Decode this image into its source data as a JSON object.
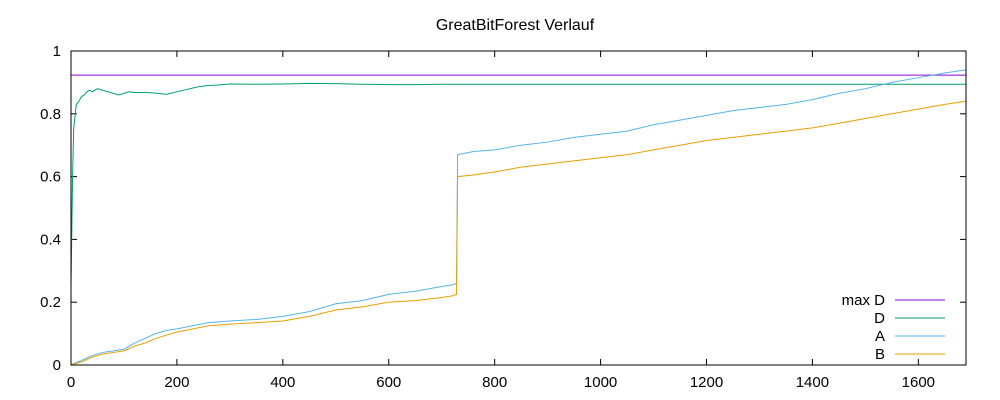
{
  "chart_data": {
    "type": "line",
    "title": "GreatBitForest Verlauf",
    "xlabel": "",
    "ylabel": "",
    "xlim": [
      0,
      1690
    ],
    "ylim": [
      0,
      1
    ],
    "x_ticks": [
      0,
      200,
      400,
      600,
      800,
      1000,
      1200,
      1400,
      1600
    ],
    "y_ticks": [
      0,
      0.2,
      0.4,
      0.6,
      0.8,
      1
    ],
    "x_tick_labels": [
      "0",
      "200",
      "400",
      "600",
      "800",
      "1000",
      "1200",
      "1400",
      "1600"
    ],
    "y_tick_labels": [
      "0",
      "0.2",
      "0.4",
      "0.6",
      "0.8",
      "1"
    ],
    "grid": false,
    "legend_position": "bottom-right",
    "series": [
      {
        "name": "max D",
        "color": "#9400d3",
        "x": [
          0,
          1690
        ],
        "y": [
          0.923,
          0.923
        ]
      },
      {
        "name": "D",
        "color": "#009e73",
        "x": [
          0,
          3,
          5,
          8,
          10,
          15,
          20,
          25,
          30,
          35,
          40,
          50,
          60,
          70,
          80,
          90,
          100,
          110,
          120,
          140,
          160,
          180,
          200,
          220,
          240,
          260,
          280,
          300,
          350,
          400,
          450,
          500,
          550,
          600,
          650,
          700,
          750,
          800,
          850,
          900,
          1000,
          1100,
          1200,
          1300,
          1400,
          1500,
          1600,
          1690
        ],
        "y": [
          0.25,
          0.6,
          0.75,
          0.8,
          0.83,
          0.84,
          0.855,
          0.86,
          0.87,
          0.875,
          0.87,
          0.88,
          0.875,
          0.87,
          0.865,
          0.86,
          0.865,
          0.87,
          0.868,
          0.868,
          0.866,
          0.862,
          0.87,
          0.878,
          0.886,
          0.89,
          0.892,
          0.895,
          0.894,
          0.895,
          0.897,
          0.896,
          0.894,
          0.893,
          0.893,
          0.894,
          0.894,
          0.894,
          0.894,
          0.894,
          0.894,
          0.894,
          0.894,
          0.894,
          0.894,
          0.894,
          0.894,
          0.894
        ]
      },
      {
        "name": "A",
        "color": "#56b4e9",
        "x": [
          0,
          10,
          20,
          40,
          60,
          80,
          100,
          120,
          140,
          160,
          180,
          200,
          230,
          260,
          300,
          350,
          400,
          450,
          500,
          550,
          600,
          650,
          700,
          720,
          728,
          730,
          760,
          800,
          850,
          900,
          950,
          1000,
          1050,
          1100,
          1150,
          1200,
          1250,
          1300,
          1350,
          1400,
          1450,
          1500,
          1550,
          1600,
          1650,
          1690
        ],
        "y": [
          0.0,
          0.008,
          0.015,
          0.03,
          0.04,
          0.045,
          0.05,
          0.07,
          0.085,
          0.1,
          0.11,
          0.115,
          0.125,
          0.135,
          0.14,
          0.145,
          0.155,
          0.17,
          0.195,
          0.205,
          0.225,
          0.235,
          0.25,
          0.255,
          0.26,
          0.67,
          0.68,
          0.685,
          0.7,
          0.71,
          0.725,
          0.735,
          0.745,
          0.765,
          0.78,
          0.795,
          0.81,
          0.82,
          0.83,
          0.845,
          0.865,
          0.88,
          0.9,
          0.915,
          0.93,
          0.94
        ]
      },
      {
        "name": "B",
        "color": "#e69f00",
        "x": [
          0,
          10,
          20,
          40,
          60,
          80,
          100,
          120,
          140,
          160,
          180,
          200,
          230,
          260,
          300,
          350,
          400,
          450,
          500,
          550,
          600,
          650,
          700,
          720,
          728,
          730,
          760,
          800,
          850,
          900,
          950,
          1000,
          1050,
          1100,
          1150,
          1200,
          1250,
          1300,
          1350,
          1400,
          1450,
          1500,
          1550,
          1600,
          1650,
          1690
        ],
        "y": [
          0.0,
          0.005,
          0.01,
          0.025,
          0.035,
          0.04,
          0.045,
          0.06,
          0.07,
          0.085,
          0.095,
          0.105,
          0.115,
          0.125,
          0.13,
          0.135,
          0.14,
          0.155,
          0.175,
          0.185,
          0.2,
          0.205,
          0.215,
          0.22,
          0.225,
          0.6,
          0.605,
          0.615,
          0.63,
          0.64,
          0.65,
          0.66,
          0.67,
          0.685,
          0.7,
          0.715,
          0.725,
          0.735,
          0.745,
          0.755,
          0.77,
          0.785,
          0.8,
          0.815,
          0.83,
          0.84
        ]
      }
    ]
  }
}
